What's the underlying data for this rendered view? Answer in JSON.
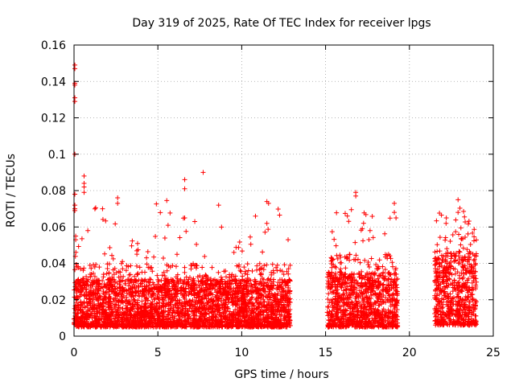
{
  "chart_data": {
    "type": "scatter",
    "title": "Day 319 of 2025, Rate Of TEC Index for receiver lpgs",
    "xlabel": "GPS time / hours",
    "ylabel": "ROTI / TECUs",
    "xlim": [
      0,
      25
    ],
    "ylim": [
      0,
      0.16
    ],
    "x_ticks": [
      "0",
      "5",
      "10",
      "15",
      "20",
      "25"
    ],
    "y_ticks": [
      "0",
      "0.02",
      "0.04",
      "0.06",
      "0.08",
      "0.1",
      "0.12",
      "0.14",
      "0.16"
    ],
    "grid": true,
    "marker": "plus",
    "point_color": "#ff0000",
    "data_segments": [
      {
        "x_start": 0.0,
        "x_end": 12.9,
        "typical_y": [
          0.005,
          0.04
        ],
        "max_y_approx": 0.09
      },
      {
        "x_start": 15.1,
        "x_end": 19.3,
        "typical_y": [
          0.005,
          0.045
        ],
        "max_y_approx": 0.08
      },
      {
        "x_start": 21.5,
        "x_end": 24.0,
        "typical_y": [
          0.006,
          0.06
        ],
        "max_y_approx": 0.075
      }
    ],
    "notable_points": [
      {
        "x": 0.05,
        "y": 0.149
      },
      {
        "x": 0.05,
        "y": 0.147
      },
      {
        "x": 0.05,
        "y": 0.139
      },
      {
        "x": 0.05,
        "y": 0.138
      },
      {
        "x": 0.05,
        "y": 0.131
      },
      {
        "x": 0.05,
        "y": 0.129
      },
      {
        "x": 0.05,
        "y": 0.1
      },
      {
        "x": 0.05,
        "y": 0.078
      },
      {
        "x": 0.05,
        "y": 0.072
      },
      {
        "x": 0.05,
        "y": 0.07
      },
      {
        "x": 0.05,
        "y": 0.069
      },
      {
        "x": 0.1,
        "y": 0.055
      },
      {
        "x": 0.1,
        "y": 0.053
      },
      {
        "x": 0.6,
        "y": 0.088
      },
      {
        "x": 0.6,
        "y": 0.084
      },
      {
        "x": 0.6,
        "y": 0.082
      },
      {
        "x": 0.6,
        "y": 0.079
      },
      {
        "x": 1.7,
        "y": 0.07
      },
      {
        "x": 2.6,
        "y": 0.076
      },
      {
        "x": 2.6,
        "y": 0.073
      },
      {
        "x": 6.6,
        "y": 0.086
      },
      {
        "x": 6.6,
        "y": 0.081
      },
      {
        "x": 6.6,
        "y": 0.065
      },
      {
        "x": 7.2,
        "y": 0.063
      },
      {
        "x": 7.7,
        "y": 0.09
      },
      {
        "x": 11.5,
        "y": 0.074
      },
      {
        "x": 11.6,
        "y": 0.073
      },
      {
        "x": 11.5,
        "y": 0.062
      },
      {
        "x": 16.8,
        "y": 0.079
      },
      {
        "x": 16.8,
        "y": 0.077
      },
      {
        "x": 16.3,
        "y": 0.066
      },
      {
        "x": 19.1,
        "y": 0.073
      },
      {
        "x": 19.1,
        "y": 0.068
      },
      {
        "x": 19.2,
        "y": 0.065
      },
      {
        "x": 22.9,
        "y": 0.075
      },
      {
        "x": 22.9,
        "y": 0.068
      },
      {
        "x": 22.2,
        "y": 0.065
      }
    ]
  }
}
